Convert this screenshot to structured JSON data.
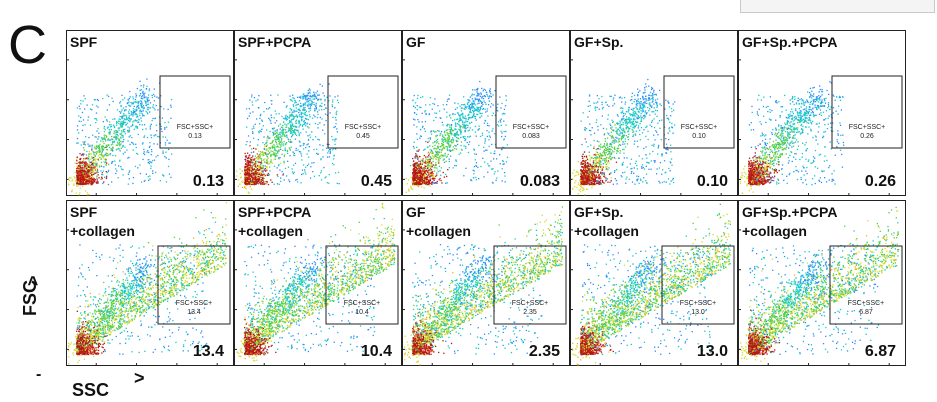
{
  "figure_label": "C",
  "axis": {
    "x": "SSC",
    "y": "FSC",
    "x_arrow": ">",
    "y_arrow": ">",
    "origin_mark": "-"
  },
  "colors": {
    "density": [
      "#2a33cc",
      "#2f8bff",
      "#19c9c8",
      "#55d045",
      "#d8dc2a",
      "#f1ac1e",
      "#e0421a",
      "#b51414"
    ]
  },
  "chart_data": [
    {
      "type": "scatter",
      "title": "SPF",
      "subtitle": "",
      "gate_label": "FSC+SSC+",
      "gate_value": "0.13",
      "percent": 0.13,
      "grid": false
    },
    {
      "type": "scatter",
      "title": "SPF+PCPA",
      "subtitle": "",
      "gate_label": "FSC+SSC+",
      "gate_value": "0.45",
      "percent": 0.45,
      "grid": false
    },
    {
      "type": "scatter",
      "title": "GF",
      "subtitle": "",
      "gate_label": "FSC+SSC+",
      "gate_value": "0.083",
      "percent": 0.083,
      "grid": false
    },
    {
      "type": "scatter",
      "title": "GF+Sp.",
      "subtitle": "",
      "gate_label": "FSC+SSC+",
      "gate_value": "0.10",
      "percent": 0.1,
      "grid": false
    },
    {
      "type": "scatter",
      "title": "GF+Sp.+PCPA",
      "subtitle": "",
      "gate_label": "FSC+SSC+",
      "gate_value": "0.26",
      "percent": 0.26,
      "grid": false
    },
    {
      "type": "scatter",
      "title": "SPF",
      "subtitle": "+collagen",
      "gate_label": "FSC+SSC+",
      "gate_value": "13.4",
      "percent": 13.4,
      "grid": false
    },
    {
      "type": "scatter",
      "title": "SPF+PCPA",
      "subtitle": "+collagen",
      "gate_label": "FSC+SSC+",
      "gate_value": "10.4",
      "percent": 10.4,
      "grid": false
    },
    {
      "type": "scatter",
      "title": "GF",
      "subtitle": "+collagen",
      "gate_label": "FSC+SSC+",
      "gate_value": "2.35",
      "percent": 2.35,
      "grid": false
    },
    {
      "type": "scatter",
      "title": "GF+Sp.",
      "subtitle": "+collagen",
      "gate_label": "FSC+SSC+",
      "gate_value": "13.0",
      "percent": 13.0,
      "grid": false
    },
    {
      "type": "scatter",
      "title": "GF+Sp.+PCPA",
      "subtitle": "+collagen",
      "gate_label": "FSC+SSC+",
      "gate_value": "6.87",
      "percent": 6.87,
      "grid": false
    }
  ]
}
